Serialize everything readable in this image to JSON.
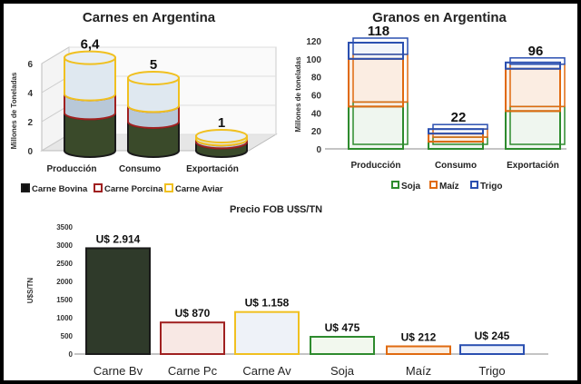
{
  "chart_data": [
    {
      "type": "bar",
      "title": "Carnes en Argentina",
      "ylabel": "Millones de Toneladas",
      "categories": [
        "Producción",
        "Consumo",
        "Exportación"
      ],
      "ylim": [
        0,
        6
      ],
      "yticks": [
        0,
        2,
        4,
        6
      ],
      "stacked": true,
      "totals": [
        "6,4",
        "5",
        "1"
      ],
      "series": [
        {
          "name": "Carne Bovina",
          "values": [
            2.6,
            2.0,
            0.6
          ],
          "color": "#1a1a1a"
        },
        {
          "name": "Carne Porcina",
          "values": [
            1.3,
            1.1,
            0.2
          ],
          "color": "#a02020"
        },
        {
          "name": "Carne Aviar",
          "values": [
            2.5,
            1.9,
            0.2
          ],
          "color": "#f0c020"
        }
      ],
      "legend": "bottom"
    },
    {
      "type": "bar",
      "title": "Granos en Argentina",
      "ylabel": "Millones de toneladas",
      "categories": [
        "Producción",
        "Consumo",
        "Exportación"
      ],
      "ylim": [
        0,
        120
      ],
      "yticks": [
        0,
        20,
        40,
        60,
        80,
        100,
        120
      ],
      "stacked": true,
      "totals": [
        "118",
        "22",
        "96"
      ],
      "series": [
        {
          "name": "Soja",
          "values": [
            47,
            8,
            42
          ],
          "color": "#2e8b2e"
        },
        {
          "name": "Maíz",
          "values": [
            53,
            9,
            47
          ],
          "color": "#e06a10"
        },
        {
          "name": "Trigo",
          "values": [
            18,
            5,
            7
          ],
          "color": "#2a4fb0"
        }
      ],
      "legend": "bottom"
    },
    {
      "type": "bar",
      "title": "Precio FOB U$S/TN",
      "ylabel": "U$S/TN",
      "categories": [
        "Carne Bv",
        "Carne Pc",
        "Carne Av",
        "Soja",
        "Maíz",
        "Trigo"
      ],
      "values": [
        2914,
        870,
        1158,
        475,
        212,
        245
      ],
      "labels": [
        "U$ 2.914",
        "U$ 870",
        "U$ 1.158",
        "U$ 475",
        "U$ 212",
        "U$ 245"
      ],
      "ylim": [
        0,
        3500
      ],
      "yticks": [
        0,
        500,
        1000,
        1500,
        2000,
        2500,
        3000,
        3500
      ],
      "colors": [
        "#1a1a1a",
        "#a02020",
        "#f0c020",
        "#2e8b2e",
        "#e06a10",
        "#2a4fb0"
      ]
    }
  ]
}
